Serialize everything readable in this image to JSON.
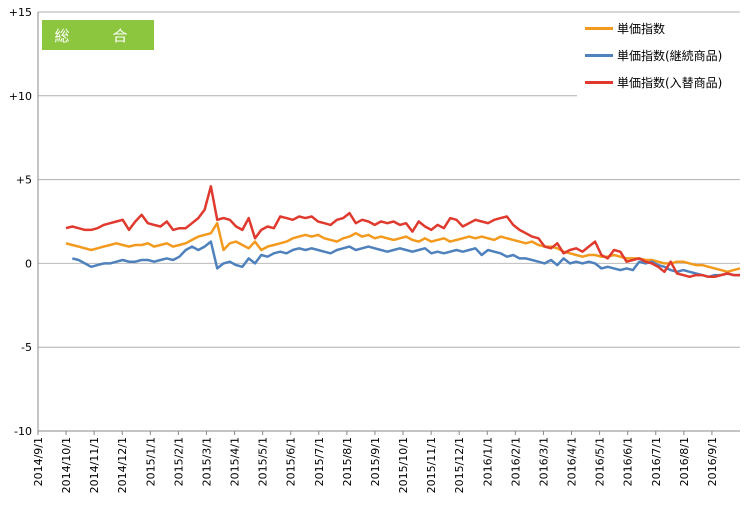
{
  "chart_data": {
    "type": "line",
    "title": "総　合",
    "title_bg": "#8cc63f",
    "ylim": [
      -10,
      15
    ],
    "yticks": [
      15,
      10,
      5,
      0,
      -5,
      -10
    ],
    "ytick_labels": [
      "+15",
      "+10",
      "+5",
      "0",
      "-5",
      "-10"
    ],
    "x_tick_labels": [
      "2014/9/1",
      "2014/10/1",
      "2014/11/1",
      "2014/12/1",
      "2015/1/1",
      "2015/2/1",
      "2015/3/1",
      "2015/4/1",
      "2015/5/1",
      "2015/6/1",
      "2015/7/1",
      "2015/8/1",
      "2015/9/1",
      "2015/10/1",
      "2015/11/1",
      "2015/12/1",
      "2016/1/1",
      "2016/2/1",
      "2016/3/1",
      "2016/4/1",
      "2016/5/1",
      "2016/6/1",
      "2016/7/1",
      "2016/8/1",
      "2016/9/1"
    ],
    "grid": true,
    "legend_position": "top-right",
    "series": [
      {
        "name": "単価指数",
        "color": "#f39a1e",
        "values": [
          1.2,
          1.1,
          1.0,
          0.9,
          0.8,
          0.9,
          1.0,
          1.1,
          1.2,
          1.1,
          1.0,
          1.1,
          1.1,
          1.2,
          1.0,
          1.1,
          1.2,
          1.0,
          1.1,
          1.2,
          1.4,
          1.6,
          1.7,
          1.8,
          2.4,
          0.8,
          1.2,
          1.3,
          1.1,
          0.9,
          1.3,
          0.8,
          1.0,
          1.1,
          1.2,
          1.3,
          1.5,
          1.6,
          1.7,
          1.6,
          1.7,
          1.5,
          1.4,
          1.3,
          1.5,
          1.6,
          1.8,
          1.6,
          1.7,
          1.5,
          1.6,
          1.5,
          1.4,
          1.5,
          1.6,
          1.4,
          1.3,
          1.5,
          1.3,
          1.4,
          1.5,
          1.3,
          1.4,
          1.5,
          1.6,
          1.5,
          1.6,
          1.5,
          1.4,
          1.6,
          1.5,
          1.4,
          1.3,
          1.2,
          1.3,
          1.1,
          1.0,
          1.0,
          0.9,
          0.7,
          0.6,
          0.5,
          0.4,
          0.5,
          0.5,
          0.4,
          0.4,
          0.5,
          0.4,
          0.3,
          0.3,
          0.3,
          0.2,
          0.2,
          0.1,
          0.0,
          0.0,
          0.1,
          0.1,
          0.0,
          -0.1,
          -0.1,
          -0.2,
          -0.3,
          -0.4,
          -0.5,
          -0.4,
          -0.3
        ]
      },
      {
        "name": "単価指数(継続商品)",
        "color": "#4f81bd",
        "values": [
          null,
          0.3,
          0.2,
          0.0,
          -0.2,
          -0.1,
          0.0,
          0.0,
          0.1,
          0.2,
          0.1,
          0.1,
          0.2,
          0.2,
          0.1,
          0.2,
          0.3,
          0.2,
          0.4,
          0.8,
          1.0,
          0.8,
          1.0,
          1.3,
          -0.3,
          0.0,
          0.1,
          -0.1,
          -0.2,
          0.3,
          0.0,
          0.5,
          0.4,
          0.6,
          0.7,
          0.6,
          0.8,
          0.9,
          0.8,
          0.9,
          0.8,
          0.7,
          0.6,
          0.8,
          0.9,
          1.0,
          0.8,
          0.9,
          1.0,
          0.9,
          0.8,
          0.7,
          0.8,
          0.9,
          0.8,
          0.7,
          0.8,
          0.9,
          0.6,
          0.7,
          0.6,
          0.7,
          0.8,
          0.7,
          0.8,
          0.9,
          0.5,
          0.8,
          0.7,
          0.6,
          0.4,
          0.5,
          0.3,
          0.3,
          0.2,
          0.1,
          0.0,
          0.2,
          -0.1,
          0.3,
          0.0,
          0.1,
          0.0,
          0.1,
          0.0,
          -0.3,
          -0.2,
          -0.3,
          -0.4,
          -0.3,
          -0.4,
          0.1,
          0.0,
          0.1,
          -0.1,
          -0.2,
          -0.4,
          -0.5,
          -0.4,
          -0.5,
          -0.6,
          -0.7,
          -0.8,
          -0.7,
          -0.7,
          -0.6,
          -0.7,
          -0.7
        ]
      },
      {
        "name": "単価指数(入替商品)",
        "color": "#e03a2f",
        "values": [
          2.1,
          2.2,
          2.1,
          2.0,
          2.0,
          2.1,
          2.3,
          2.4,
          2.5,
          2.6,
          2.0,
          2.5,
          2.9,
          2.4,
          2.3,
          2.2,
          2.5,
          2.0,
          2.1,
          2.1,
          2.4,
          2.7,
          3.2,
          4.6,
          2.6,
          2.7,
          2.6,
          2.2,
          2.0,
          2.7,
          1.5,
          2.0,
          2.2,
          2.1,
          2.8,
          2.7,
          2.6,
          2.8,
          2.7,
          2.8,
          2.5,
          2.4,
          2.3,
          2.6,
          2.7,
          3.0,
          2.4,
          2.6,
          2.5,
          2.3,
          2.5,
          2.4,
          2.5,
          2.3,
          2.4,
          1.9,
          2.5,
          2.2,
          2.0,
          2.3,
          2.1,
          2.7,
          2.6,
          2.2,
          2.4,
          2.6,
          2.5,
          2.4,
          2.6,
          2.7,
          2.8,
          2.3,
          2.0,
          1.8,
          1.6,
          1.5,
          1.0,
          0.9,
          1.2,
          0.6,
          0.8,
          0.9,
          0.7,
          1.0,
          1.3,
          0.5,
          0.3,
          0.8,
          0.7,
          0.1,
          0.2,
          0.3,
          0.1,
          0.0,
          -0.2,
          -0.5,
          0.1,
          -0.6,
          -0.7,
          -0.8,
          -0.7,
          -0.7,
          -0.8,
          -0.8,
          -0.7,
          -0.6,
          -0.7,
          -0.7
        ]
      }
    ]
  }
}
